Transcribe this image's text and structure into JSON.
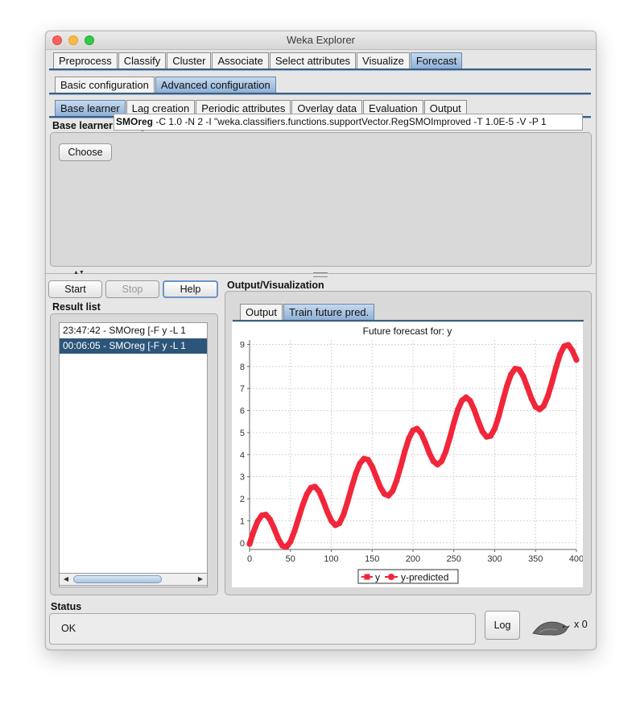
{
  "window": {
    "title": "Weka Explorer"
  },
  "main_tabs": [
    "Preprocess",
    "Classify",
    "Cluster",
    "Associate",
    "Select attributes",
    "Visualize",
    "Forecast"
  ],
  "config_tabs": [
    "Basic configuration",
    "Advanced configuration"
  ],
  "advanced_tabs": [
    "Base learner",
    "Lag creation",
    "Periodic attributes",
    "Overlay data",
    "Evaluation",
    "Output"
  ],
  "base_learner": {
    "section_title": "Base learner configuration",
    "choose_label": "Choose",
    "classifier_name": "SMOreg",
    "classifier_options": " -C 1.0 -N 2 -I \"weka.classifiers.functions.supportVector.RegSMOImproved -T 1.0E-5 -V -P 1"
  },
  "controls": {
    "start": "Start",
    "stop": "Stop",
    "help": "Help"
  },
  "result_list": {
    "title": "Result list",
    "items": [
      "23:47:42 - SMOreg [-F y -L 1",
      "00:06:05 - SMOreg [-F y -L 1"
    ],
    "selected_index": 1
  },
  "output": {
    "title": "Output/Visualization",
    "tabs": [
      "Output",
      "Train future pred."
    ]
  },
  "status": {
    "title": "Status",
    "text": "OK",
    "log_label": "Log",
    "count_label": "x 0"
  },
  "colors": {
    "series": "#f2263a",
    "selected_tab": "#9fbde0",
    "selected_row": "#2c5679"
  },
  "chart_data": {
    "type": "line",
    "title": "Future forecast for: y",
    "xlim": [
      0,
      400
    ],
    "ylim": [
      -0.3,
      9.2
    ],
    "xticks": [
      0,
      50,
      100,
      150,
      200,
      250,
      300,
      350,
      400
    ],
    "yticks": [
      0,
      1,
      2,
      3,
      4,
      5,
      6,
      7,
      8,
      9
    ],
    "grid": true,
    "legend": "bottom-center",
    "series": [
      {
        "name": "y",
        "marker": "square",
        "x": [
          0,
          5,
          10,
          15,
          20,
          25,
          30,
          35,
          40,
          45,
          50,
          55,
          60,
          65,
          70,
          75,
          80,
          85,
          90,
          95,
          100,
          105,
          110,
          115,
          120,
          125,
          130,
          135,
          140,
          145,
          150,
          155,
          160,
          165,
          170,
          175,
          180,
          185,
          190,
          195,
          200,
          205,
          210,
          215,
          220,
          225,
          230,
          235,
          240,
          245,
          250,
          255,
          260,
          265,
          270,
          275,
          280,
          285,
          290,
          295,
          300,
          305,
          310,
          315,
          320,
          325,
          330,
          335,
          340,
          345,
          350,
          355,
          360,
          365,
          370,
          375,
          380,
          385,
          390,
          395,
          400
        ],
        "values": [
          -0.05,
          0.52,
          0.98,
          1.25,
          1.28,
          1.06,
          0.66,
          0.2,
          -0.13,
          -0.19,
          0.05,
          0.53,
          1.12,
          1.71,
          2.2,
          2.5,
          2.55,
          2.34,
          1.91,
          1.42,
          1.01,
          0.8,
          0.89,
          1.28,
          1.87,
          2.53,
          3.14,
          3.6,
          3.82,
          3.77,
          3.46,
          2.99,
          2.53,
          2.22,
          2.14,
          2.35,
          2.83,
          3.47,
          4.15,
          4.74,
          5.1,
          5.18,
          4.97,
          4.55,
          4.07,
          3.7,
          3.55,
          3.7,
          4.13,
          4.75,
          5.44,
          6.05,
          6.46,
          6.6,
          6.44,
          6.03,
          5.51,
          5.05,
          4.81,
          4.85,
          5.18,
          5.75,
          6.45,
          7.12,
          7.64,
          7.9,
          7.86,
          7.55,
          7.06,
          6.55,
          6.17,
          6.05,
          6.21,
          6.65,
          7.27,
          7.95,
          8.55,
          8.92,
          8.98,
          8.72,
          8.3
        ]
      },
      {
        "name": "y-predicted",
        "marker": "circle",
        "x": [],
        "values": []
      }
    ]
  }
}
